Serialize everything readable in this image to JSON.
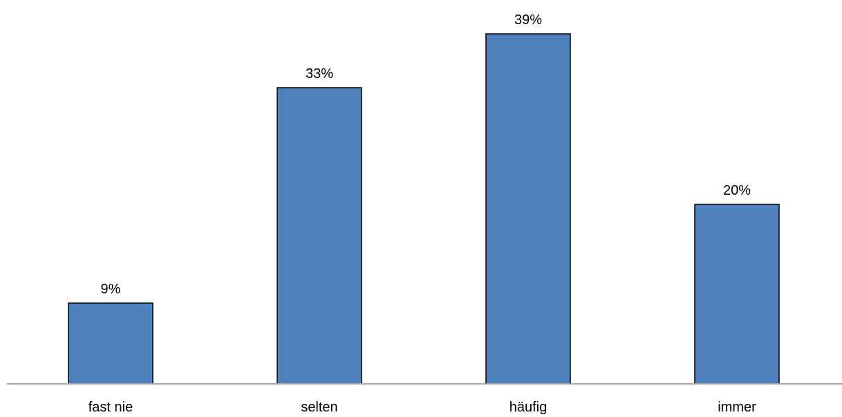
{
  "chart_data": {
    "type": "bar",
    "categories": [
      "fast nie",
      "selten",
      "häufig",
      "immer"
    ],
    "values": [
      9,
      33,
      39,
      20
    ],
    "data_labels": [
      "9%",
      "33%",
      "39%",
      "20%"
    ],
    "unit": "%",
    "title": "",
    "xlabel": "",
    "ylabel": "",
    "ylim": [
      0,
      40
    ],
    "grid": false,
    "legend": "none",
    "bar_color": "#4f81bd",
    "bar_edge_color": "#000000",
    "axis_color": "#a6a6a6"
  }
}
